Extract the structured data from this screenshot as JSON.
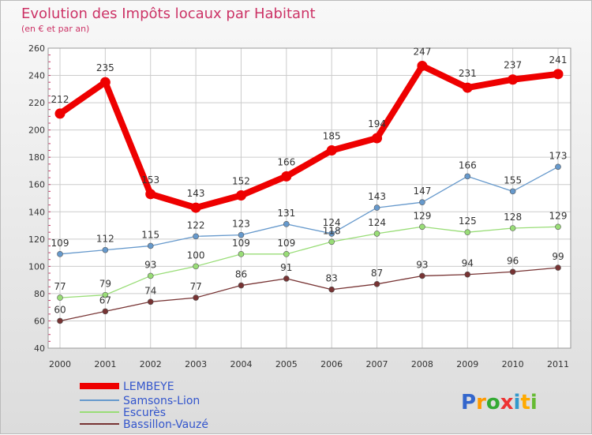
{
  "chart_data": {
    "type": "line",
    "title": "Evolution des Impôts locaux par Habitant",
    "subtitle": "(en € et par an)",
    "xlabel": "",
    "ylabel": "",
    "categories": [
      "2000",
      "2001",
      "2002",
      "2003",
      "2004",
      "2005",
      "2006",
      "2007",
      "2008",
      "2009",
      "2010",
      "2011"
    ],
    "ylim": [
      40,
      260
    ],
    "yticks": [
      "40",
      "60",
      "80",
      "100",
      "120",
      "140",
      "160",
      "180",
      "200",
      "220",
      "240",
      "260"
    ],
    "grid": true,
    "legend_position": "bottom-left",
    "series": [
      {
        "name": "LEMBEYE",
        "color": "#ee0000",
        "values": [
          212,
          235,
          153,
          143,
          152,
          166,
          185,
          194,
          247,
          231,
          237,
          241
        ],
        "labels": [
          "212",
          "235",
          "153",
          "143",
          "152",
          "166",
          "185",
          "194",
          "247",
          "231",
          "237",
          "241"
        ]
      },
      {
        "name": "Samsons-Lion",
        "color": "#6699cc",
        "values": [
          109,
          112,
          115,
          122,
          123,
          131,
          124,
          143,
          147,
          166,
          155,
          173
        ],
        "labels": [
          "109",
          "112",
          "115",
          "122",
          "123",
          "131",
          "124",
          "143",
          "147",
          "166",
          "155",
          "173"
        ]
      },
      {
        "name": "Escurès",
        "color": "#99dd77",
        "values": [
          77,
          79,
          93,
          100,
          109,
          109,
          118,
          124,
          129,
          125,
          128,
          129
        ],
        "labels": [
          "77",
          "79",
          "93",
          "100",
          "109",
          "109",
          "118",
          "124",
          "129",
          "125",
          "128",
          "129"
        ]
      },
      {
        "name": "Bassillon-Vauzé",
        "color": "#773333",
        "values": [
          60,
          67,
          74,
          77,
          86,
          91,
          83,
          87,
          93,
          94,
          96,
          99
        ],
        "labels": [
          "60",
          "67",
          "74",
          "77",
          "86",
          "91",
          "83",
          "87",
          "93",
          "94",
          "96",
          "99"
        ]
      }
    ]
  },
  "logo": {
    "text": "Proxiti"
  },
  "colors": {
    "title": "#cc3366",
    "axis_label": "#333333",
    "grid": "#cccccc",
    "label": "#333333"
  }
}
